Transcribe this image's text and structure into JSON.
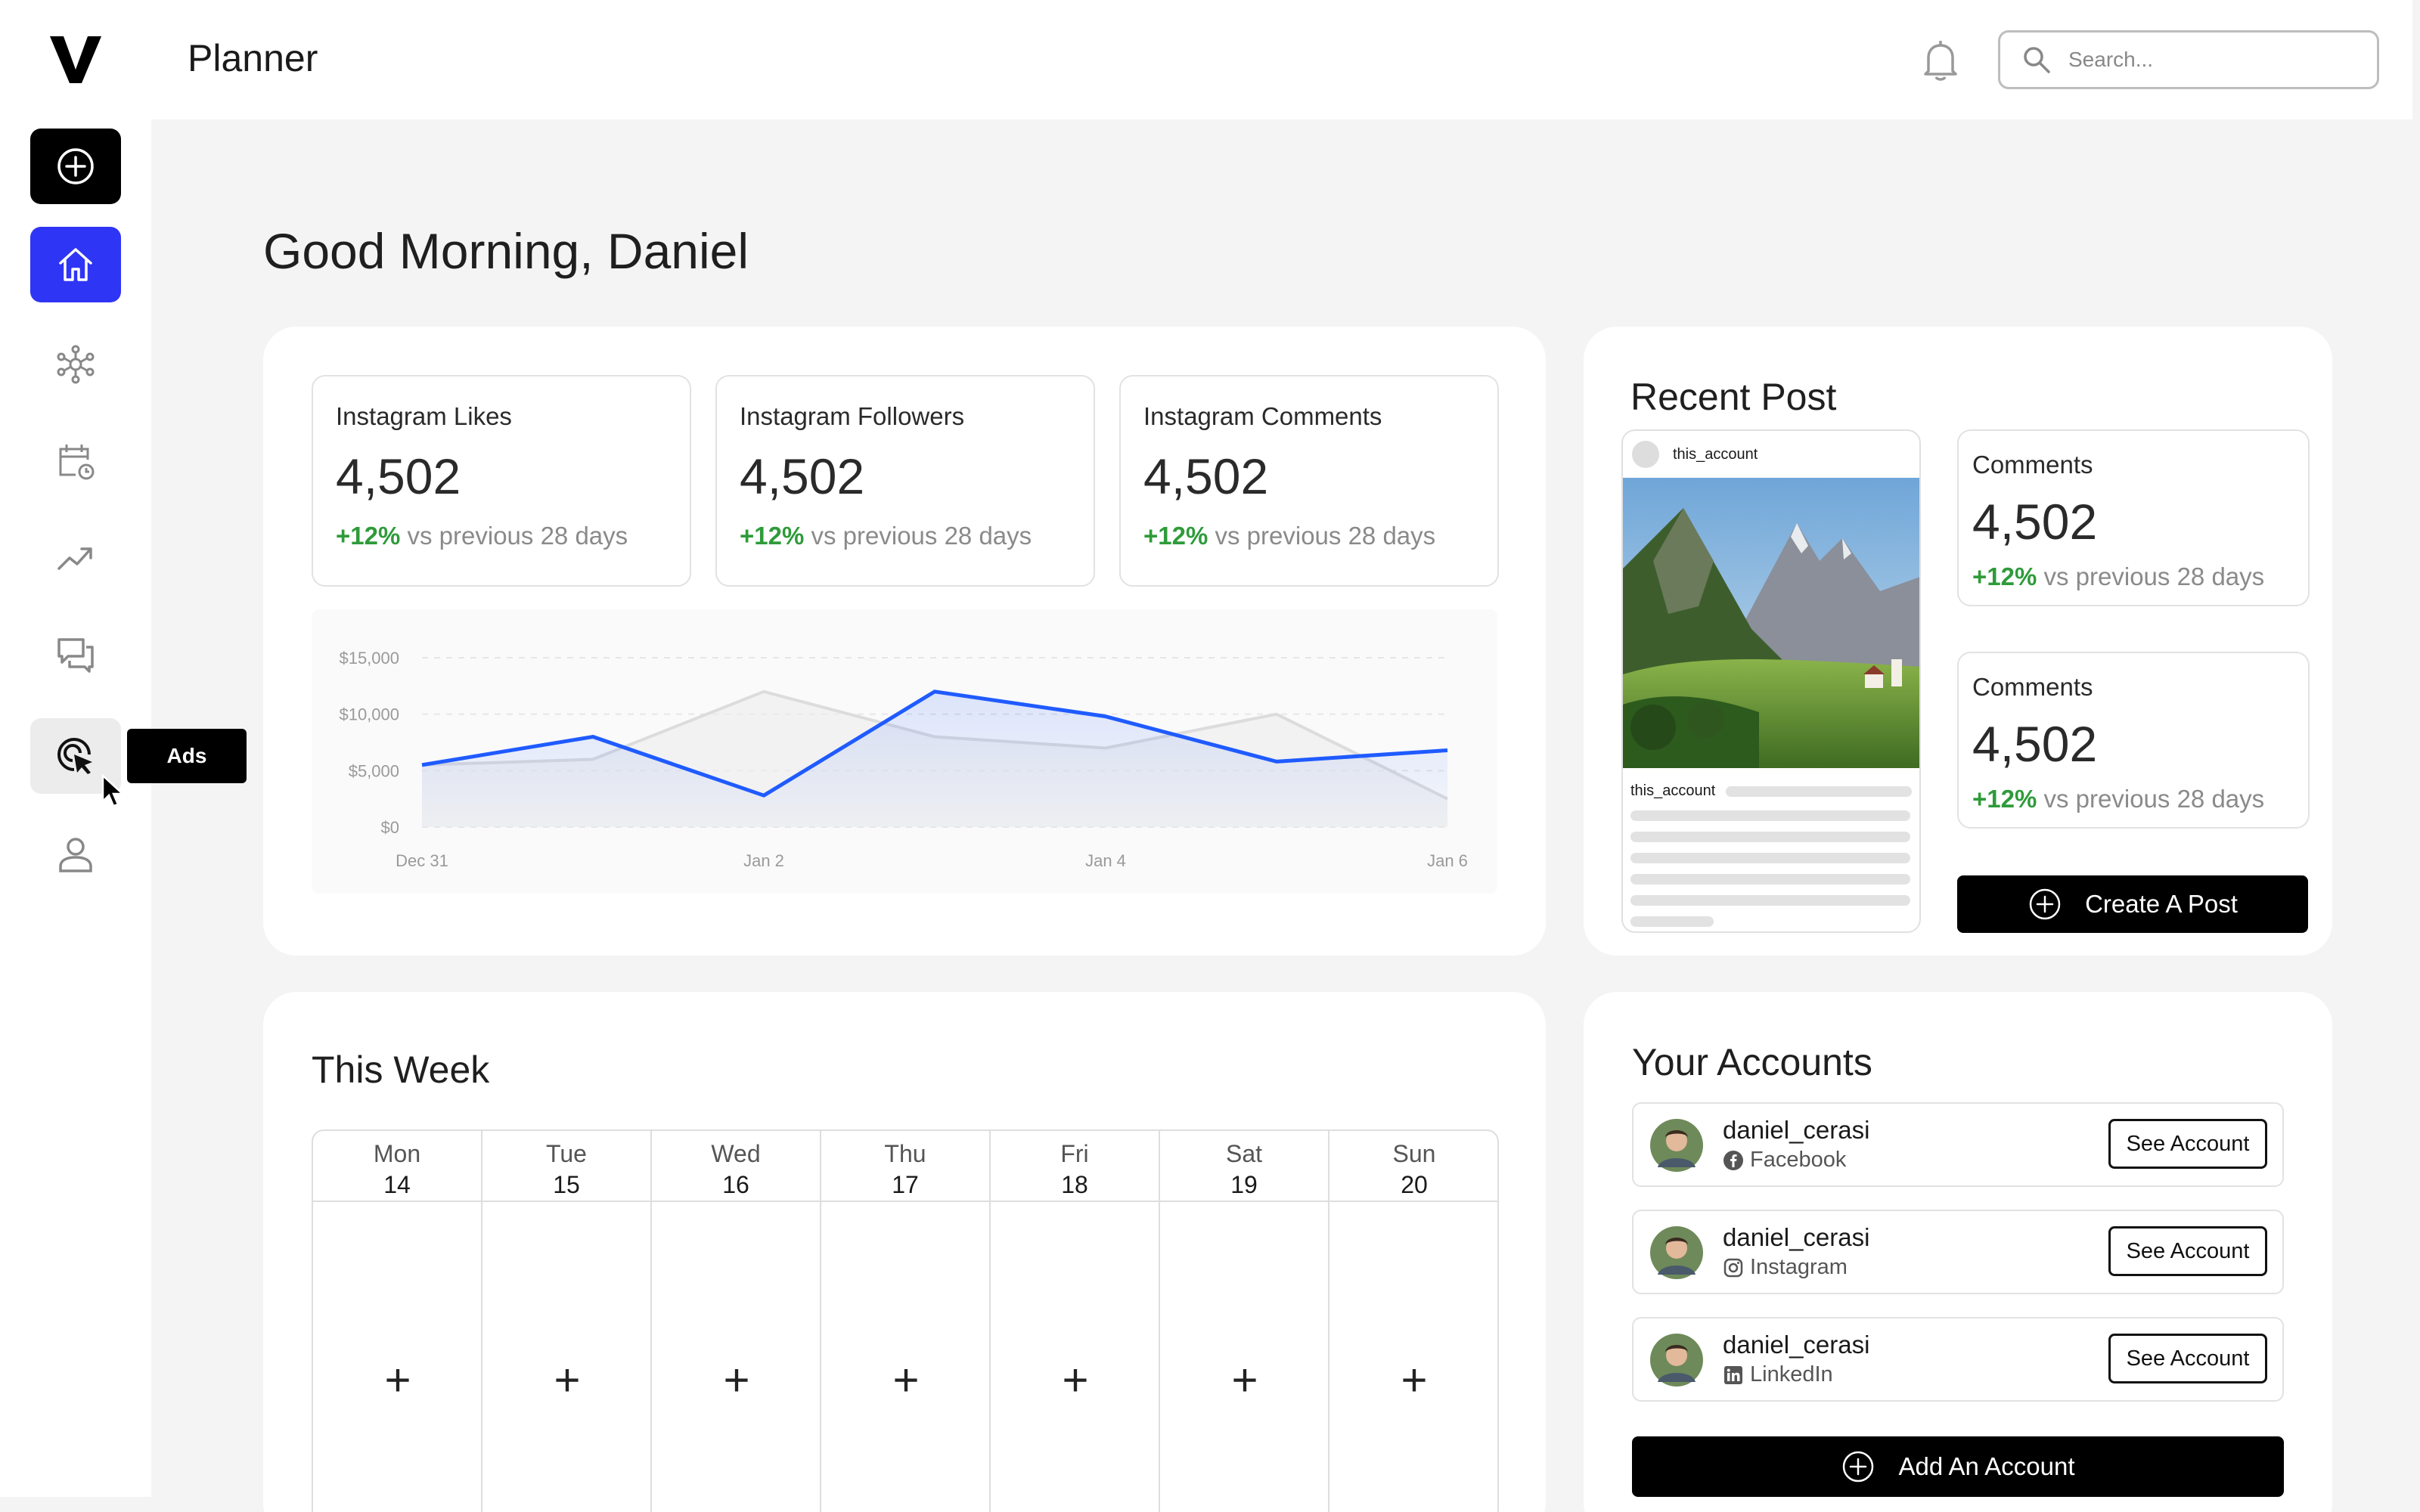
{
  "header": {
    "title": "Planner",
    "search_placeholder": "Search..."
  },
  "sidebar": {
    "logo": "V",
    "items": [
      {
        "name": "create",
        "icon": "plus-circle-icon"
      },
      {
        "name": "home",
        "icon": "home-icon",
        "active": true
      },
      {
        "name": "network",
        "icon": "network-icon"
      },
      {
        "name": "schedule",
        "icon": "calendar-clock-icon"
      },
      {
        "name": "analytics",
        "icon": "trending-up-icon"
      },
      {
        "name": "messages",
        "icon": "chat-icon"
      },
      {
        "name": "ads",
        "icon": "target-cursor-icon",
        "tooltip": "Ads"
      },
      {
        "name": "profile",
        "icon": "user-icon"
      }
    ]
  },
  "greeting": "Good Morning, Daniel",
  "stats": [
    {
      "label": "Instagram Likes",
      "value": "4,502",
      "change": "+12%",
      "period": "vs previous 28 days"
    },
    {
      "label": "Instagram Followers",
      "value": "4,502",
      "change": "+12%",
      "period": "vs previous 28 days"
    },
    {
      "label": "Instagram Comments",
      "value": "4,502",
      "change": "+12%",
      "period": "vs previous 28 days"
    }
  ],
  "chart_data": {
    "type": "area",
    "y_ticks": [
      "$15,000",
      "$10,000",
      "$5,000",
      "$0"
    ],
    "x_ticks": [
      "Dec 31",
      "Jan 2",
      "Jan 4",
      "Jan 6"
    ],
    "ylim": [
      0,
      15000
    ],
    "x": [
      0,
      1,
      2,
      3,
      4,
      5,
      6
    ],
    "series": [
      {
        "values": [
          5500,
          8000,
          2800,
          12000,
          9800,
          5800,
          6800
        ],
        "color": "#1f5bff"
      },
      {
        "values": [
          5500,
          6000,
          12000,
          8000,
          7000,
          10000,
          2500
        ],
        "color": "#dcdcdc"
      }
    ]
  },
  "recent_post": {
    "title": "Recent Post",
    "account": "this_account",
    "stats": [
      {
        "label": "Comments",
        "value": "4,502",
        "change": "+12%",
        "period": "vs previous 28 days"
      },
      {
        "label": "Comments",
        "value": "4,502",
        "change": "+12%",
        "period": "vs previous 28 days"
      }
    ],
    "create_label": "Create A Post"
  },
  "week": {
    "title": "This Week",
    "days": [
      {
        "name": "Mon",
        "date": "14"
      },
      {
        "name": "Tue",
        "date": "15"
      },
      {
        "name": "Wed",
        "date": "16"
      },
      {
        "name": "Thu",
        "date": "17"
      },
      {
        "name": "Fri",
        "date": "18"
      },
      {
        "name": "Sat",
        "date": "19"
      },
      {
        "name": "Sun",
        "date": "20"
      }
    ],
    "add_glyph": "+"
  },
  "accounts": {
    "title": "Your Accounts",
    "items": [
      {
        "name": "daniel_cerasi",
        "platform": "Facebook",
        "icon": "facebook-icon",
        "button": "See Account"
      },
      {
        "name": "daniel_cerasi",
        "platform": "Instagram",
        "icon": "instagram-icon",
        "button": "See Account"
      },
      {
        "name": "daniel_cerasi",
        "platform": "LinkedIn",
        "icon": "linkedin-icon",
        "button": "See Account"
      }
    ],
    "add_label": "Add An Account"
  },
  "colors": {
    "accent": "#2f35f5",
    "positive": "#2e9b3a",
    "line": "#1f5bff"
  }
}
